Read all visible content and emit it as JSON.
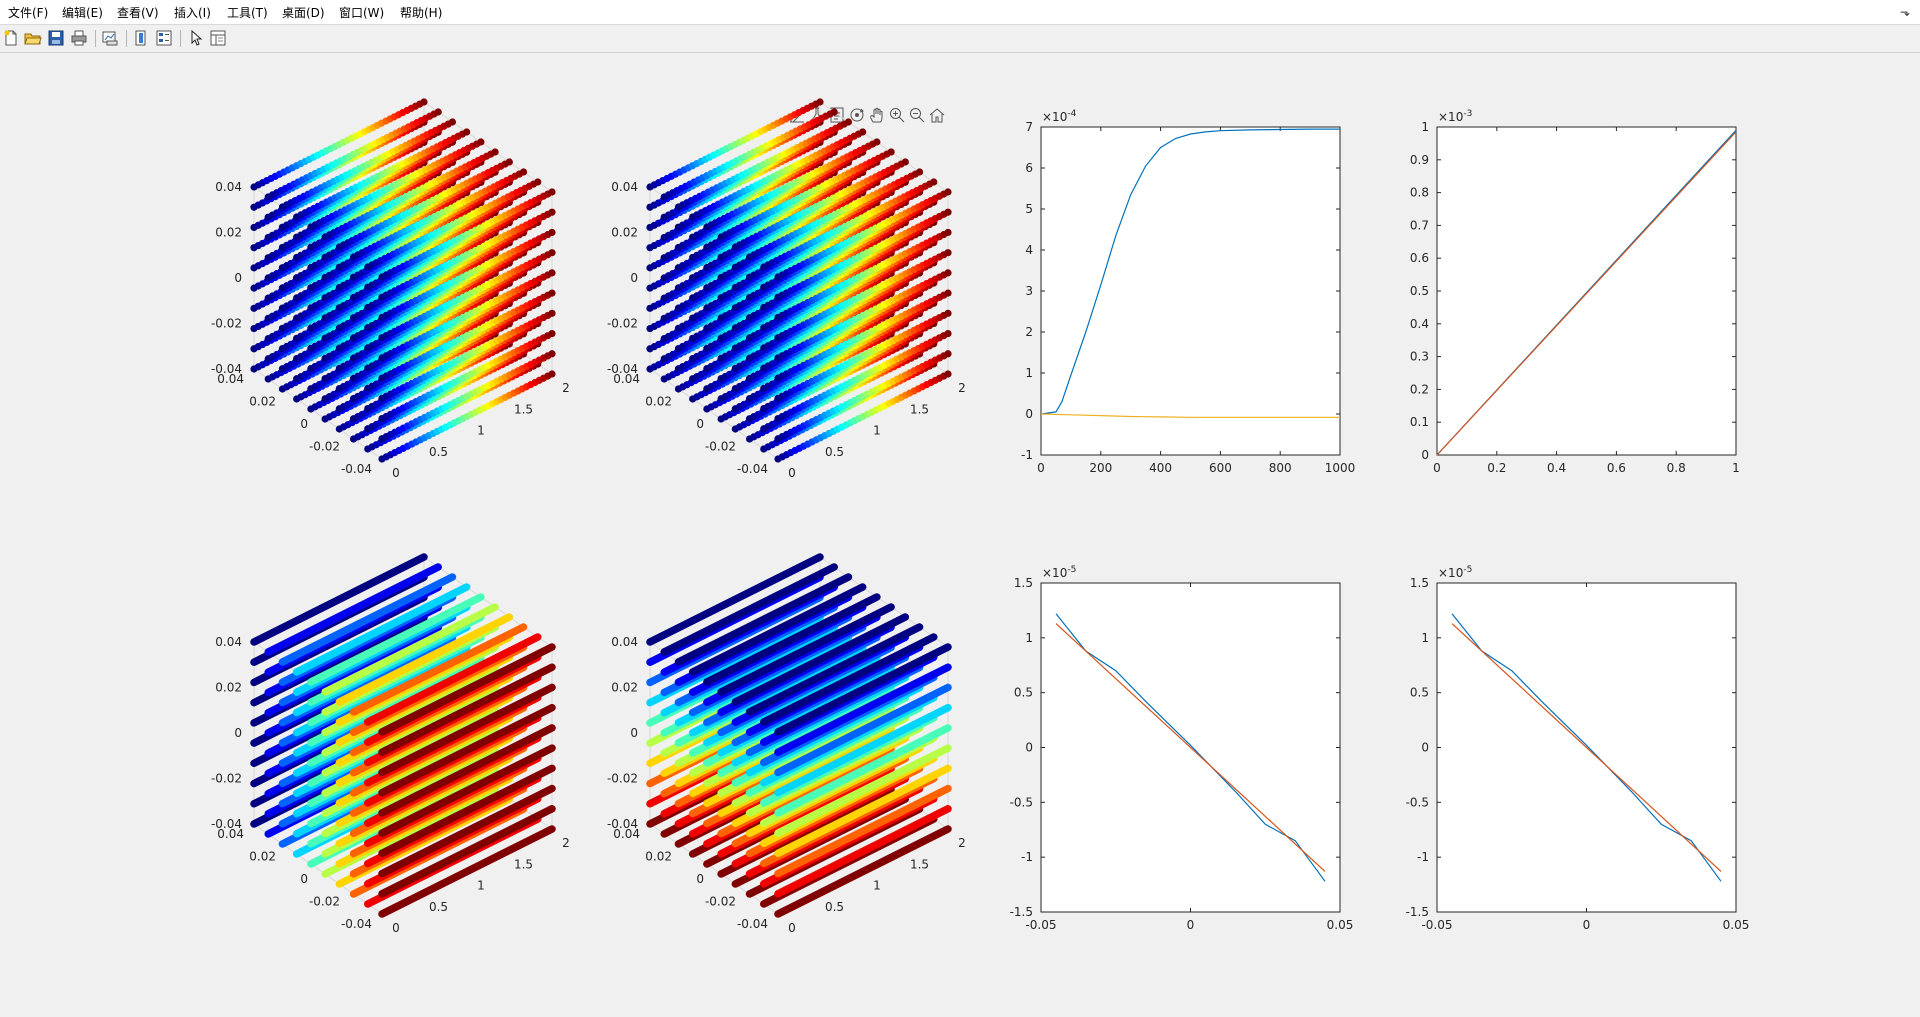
{
  "menubar": {
    "items": [
      "文件(F)",
      "编辑(E)",
      "查看(V)",
      "插入(I)",
      "工具(T)",
      "桌面(D)",
      "窗口(W)",
      "帮助(H)"
    ]
  },
  "toolbar": {
    "icons": [
      "new-file-icon",
      "open-folder-icon",
      "save-icon",
      "print-icon",
      "link-plot-icon",
      "colorbar-icon",
      "legend-icon",
      "pointer-icon",
      "property-inspector-icon"
    ]
  },
  "axes_toolbar": {
    "icons": [
      "brush-icon",
      "data-tips-icon",
      "export-icon",
      "rotate-3d-icon",
      "pan-icon",
      "zoom-in-icon",
      "zoom-out-icon",
      "home-icon"
    ]
  },
  "chart_data": [
    {
      "type": "scatter",
      "subtype": "3d-scatter",
      "colormap": "jet",
      "color_by": "x",
      "xlim": [
        0,
        2
      ],
      "ylim": [
        -0.04,
        0.04
      ],
      "zlim": [
        -0.04,
        0.04
      ],
      "xticks": [
        "0",
        "0.5",
        "1",
        "1.5",
        "2"
      ],
      "yticks": [
        "-0.04",
        "-0.02",
        "0",
        "0.02",
        "0.04"
      ],
      "zticks": [
        "-0.04",
        "-0.02",
        "0",
        "0.02",
        "0.04"
      ]
    },
    {
      "type": "scatter",
      "subtype": "3d-scatter",
      "colormap": "jet",
      "color_by": "x",
      "xlim": [
        0,
        2
      ],
      "ylim": [
        -0.04,
        0.04
      ],
      "zlim": [
        -0.04,
        0.04
      ],
      "xticks": [
        "0",
        "0.5",
        "1",
        "1.5",
        "2"
      ],
      "yticks": [
        "-0.04",
        "-0.02",
        "0",
        "0.02",
        "0.04"
      ],
      "zticks": [
        "-0.04",
        "-0.02",
        "0",
        "0.02",
        "0.04"
      ]
    },
    {
      "type": "line",
      "xlim": [
        0,
        1000
      ],
      "ylim": [
        -1,
        7
      ],
      "exponent_label": "×10^-4",
      "exponent": "-4",
      "xticks": [
        "0",
        "200",
        "400",
        "600",
        "800",
        "1000"
      ],
      "yticks": [
        "-1",
        "0",
        "1",
        "2",
        "3",
        "4",
        "5",
        "6",
        "7"
      ],
      "series": [
        {
          "color": "#0072bd",
          "x": [
            0,
            50,
            70,
            100,
            150,
            200,
            250,
            300,
            350,
            400,
            450,
            500,
            550,
            600,
            700,
            800,
            900,
            1000
          ],
          "y": [
            0,
            0.05,
            0.3,
            0.95,
            2.0,
            3.15,
            4.35,
            5.35,
            6.05,
            6.5,
            6.72,
            6.83,
            6.88,
            6.91,
            6.93,
            6.94,
            6.95,
            6.95
          ]
        },
        {
          "color": "#edb120",
          "x": [
            0,
            100,
            200,
            300,
            400,
            500,
            600,
            700,
            800,
            900,
            1000
          ],
          "y": [
            0,
            -0.02,
            -0.04,
            -0.06,
            -0.07,
            -0.08,
            -0.08,
            -0.08,
            -0.08,
            -0.08,
            -0.08
          ]
        }
      ]
    },
    {
      "type": "line",
      "xlim": [
        0,
        1
      ],
      "ylim": [
        0,
        1
      ],
      "exponent_label": "×10^-3",
      "exponent": "-3",
      "xticks": [
        "0",
        "0.2",
        "0.4",
        "0.6",
        "0.8",
        "1"
      ],
      "yticks": [
        "0",
        "0.1",
        "0.2",
        "0.3",
        "0.4",
        "0.5",
        "0.6",
        "0.7",
        "0.8",
        "0.9",
        "1"
      ],
      "series": [
        {
          "color": "#0072bd",
          "x": [
            0,
            1
          ],
          "y": [
            0,
            0.99
          ]
        },
        {
          "color": "#d95319",
          "x": [
            0,
            1
          ],
          "y": [
            0,
            0.985
          ]
        }
      ]
    },
    {
      "type": "scatter",
      "subtype": "3d-scatter",
      "colormap": "jet",
      "color_by": "y",
      "xlim": [
        0,
        2
      ],
      "ylim": [
        -0.04,
        0.04
      ],
      "zlim": [
        -0.04,
        0.04
      ],
      "xticks": [
        "0",
        "0.5",
        "1",
        "1.5",
        "2"
      ],
      "yticks": [
        "-0.04",
        "-0.02",
        "0",
        "0.02",
        "0.04"
      ],
      "zticks": [
        "-0.04",
        "-0.02",
        "0",
        "0.02",
        "0.04"
      ]
    },
    {
      "type": "scatter",
      "subtype": "3d-scatter",
      "colormap": "jet",
      "color_by": "z",
      "xlim": [
        0,
        2
      ],
      "ylim": [
        -0.04,
        0.04
      ],
      "zlim": [
        -0.04,
        0.04
      ],
      "xticks": [
        "0",
        "0.5",
        "1",
        "1.5",
        "2"
      ],
      "yticks": [
        "-0.04",
        "-0.02",
        "0",
        "0.02",
        "0.04"
      ],
      "zticks": [
        "-0.04",
        "-0.02",
        "0",
        "0.02",
        "0.04"
      ]
    },
    {
      "type": "line",
      "xlim": [
        -0.05,
        0.05
      ],
      "ylim": [
        -1.5,
        1.5
      ],
      "exponent_label": "×10^-5",
      "exponent": "-5",
      "xticks": [
        "-0.05",
        "0",
        "0.05"
      ],
      "yticks": [
        "-1.5",
        "-1",
        "-0.5",
        "0",
        "0.5",
        "1",
        "1.5"
      ],
      "series": [
        {
          "color": "#0072bd",
          "x": [
            -0.045,
            -0.035,
            -0.025,
            -0.015,
            0,
            0.015,
            0.025,
            0.035,
            0.045
          ],
          "y": [
            1.22,
            0.88,
            0.7,
            0.42,
            0.02,
            -0.4,
            -0.7,
            -0.85,
            -1.22
          ]
        },
        {
          "color": "#d95319",
          "x": [
            -0.045,
            0.045
          ],
          "y": [
            1.13,
            -1.13
          ]
        }
      ]
    },
    {
      "type": "line",
      "xlim": [
        -0.05,
        0.05
      ],
      "ylim": [
        -1.5,
        1.5
      ],
      "exponent_label": "×10^-5",
      "exponent": "-5",
      "xticks": [
        "-0.05",
        "0",
        "0.05"
      ],
      "yticks": [
        "-1.5",
        "-1",
        "-0.5",
        "0",
        "0.5",
        "1",
        "1.5"
      ],
      "series": [
        {
          "color": "#0072bd",
          "x": [
            -0.045,
            -0.035,
            -0.025,
            -0.015,
            0,
            0.015,
            0.025,
            0.035,
            0.045
          ],
          "y": [
            1.22,
            0.88,
            0.7,
            0.42,
            0.02,
            -0.4,
            -0.7,
            -0.85,
            -1.22
          ]
        },
        {
          "color": "#d95319",
          "x": [
            -0.045,
            0.045
          ],
          "y": [
            1.13,
            -1.13
          ]
        }
      ]
    }
  ]
}
